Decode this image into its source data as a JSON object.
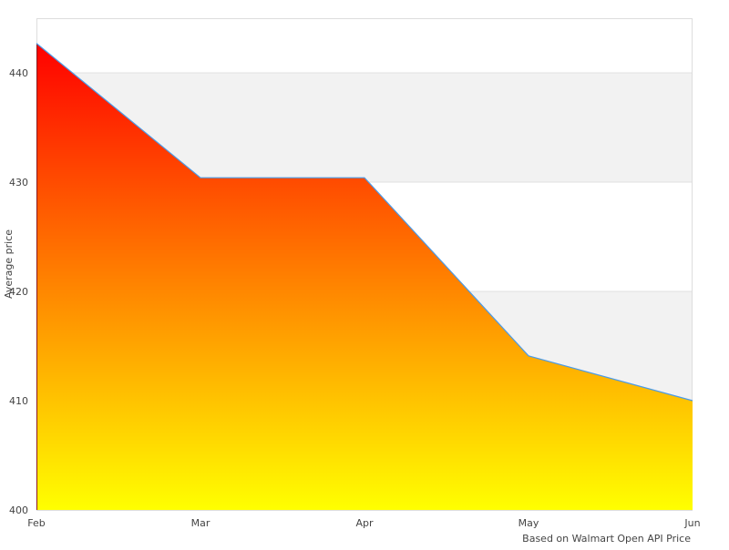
{
  "chart_data": {
    "type": "area",
    "title": "",
    "xlabel": "Based on Walmart Open API Price",
    "ylabel": "Average price",
    "categories": [
      "Feb",
      "Mar",
      "Apr",
      "May",
      "Jun"
    ],
    "series": [
      {
        "values": [
          442.7,
          430.4,
          430.4,
          414.1,
          410.0
        ]
      }
    ],
    "ylim": [
      400,
      445
    ],
    "yticks": [
      400,
      410,
      420,
      430,
      440
    ],
    "grid": "alternating horizontal bands",
    "colors": {
      "fill_top": "#ff0000",
      "fill_bottom": "#ffff00",
      "line": "#4a9be8",
      "band": "#f2f2f2",
      "frame": "#dddddd"
    }
  }
}
